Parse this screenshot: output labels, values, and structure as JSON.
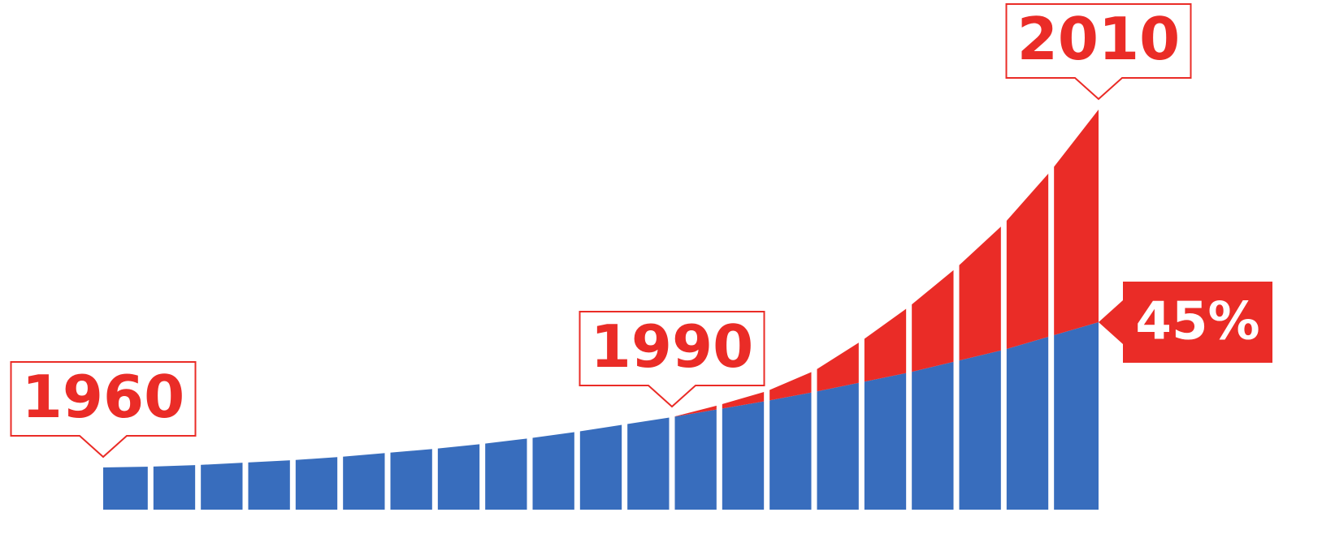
{
  "chart_data": {
    "type": "area",
    "categories": [
      "1960",
      null,
      null,
      null,
      null,
      null,
      null,
      null,
      null,
      null,
      null,
      null,
      "1990",
      null,
      null,
      null,
      null,
      null,
      null,
      null,
      null,
      "2010"
    ],
    "series": [
      {
        "color": "#386dbd",
        "values": [
          52,
          53,
          55,
          58,
          61,
          65,
          70,
          75,
          81,
          88,
          96,
          105,
          114,
          124,
          134,
          145,
          157,
          169,
          183,
          197,
          214,
          231
        ]
      },
      {
        "color": "#ea2c27",
        "values": [
          0,
          0,
          0,
          0,
          0,
          0,
          0,
          0,
          0,
          0,
          0,
          0,
          0,
          5,
          12,
          26,
          51,
          81,
          115,
          155,
          204,
          262
        ]
      }
    ],
    "ylim": [
      0,
      628
    ],
    "annotation": "45%"
  }
}
